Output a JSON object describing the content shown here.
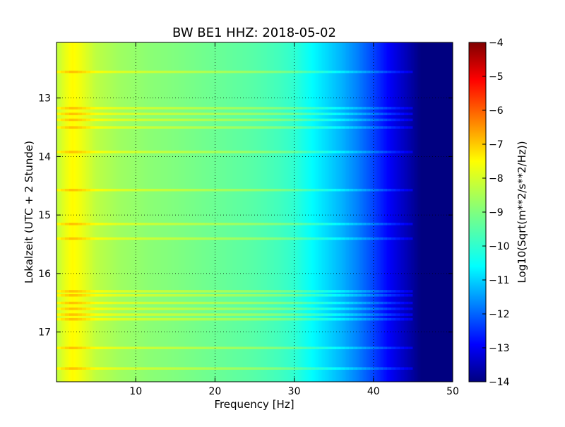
{
  "chart_data": {
    "type": "heatmap",
    "title": "BW BE1 HHZ: 2018-05-02",
    "xlabel": "Frequency [Hz]",
    "ylabel": "Lokalzeit (UTC + 2 Stunde)",
    "xlim": [
      0,
      50
    ],
    "ylim": [
      12.05,
      17.85
    ],
    "y_inverted": true,
    "x_ticks": [
      10,
      20,
      30,
      40,
      50
    ],
    "x_tick_labels": [
      "10",
      "20",
      "30",
      "40",
      "50"
    ],
    "y_ticks": [
      13,
      14,
      15,
      16,
      17
    ],
    "y_tick_labels": [
      "13",
      "14",
      "15",
      "16",
      "17"
    ],
    "grid": true,
    "colorbar": {
      "label": "Log10(Sqrt(m**2/s**2/Hz))",
      "range": [
        -14,
        -4
      ],
      "colormap": "jet",
      "ticks": [
        -4,
        -5,
        -6,
        -7,
        -8,
        -9,
        -10,
        -11,
        -12,
        -13,
        -14
      ],
      "tick_labels": [
        "−4",
        "−5",
        "−6",
        "−7",
        "−8",
        "−9",
        "−10",
        "−11",
        "−12",
        "−13",
        "−14"
      ]
    },
    "spectrum_profile": {
      "frequency_hz": [
        0,
        1,
        2,
        3,
        5,
        8,
        10,
        12,
        15,
        20,
        25,
        28,
        30,
        32,
        34,
        36,
        38,
        40,
        42,
        44,
        45,
        46,
        50
      ],
      "log10_amplitude": [
        -8.4,
        -8.0,
        -7.7,
        -7.9,
        -8.4,
        -8.7,
        -8.8,
        -8.9,
        -9.0,
        -9.2,
        -9.4,
        -9.6,
        -9.8,
        -10.2,
        -10.6,
        -11.0,
        -11.5,
        -12.1,
        -12.8,
        -13.4,
        -13.7,
        -14.0,
        -14.0
      ]
    },
    "noise_bands_hour": [
      12.55,
      13.17,
      13.27,
      13.37,
      13.5,
      13.92,
      14.57,
      15.15,
      15.4,
      16.3,
      16.37,
      16.5,
      16.6,
      16.7,
      16.78,
      17.27,
      17.62
    ]
  }
}
